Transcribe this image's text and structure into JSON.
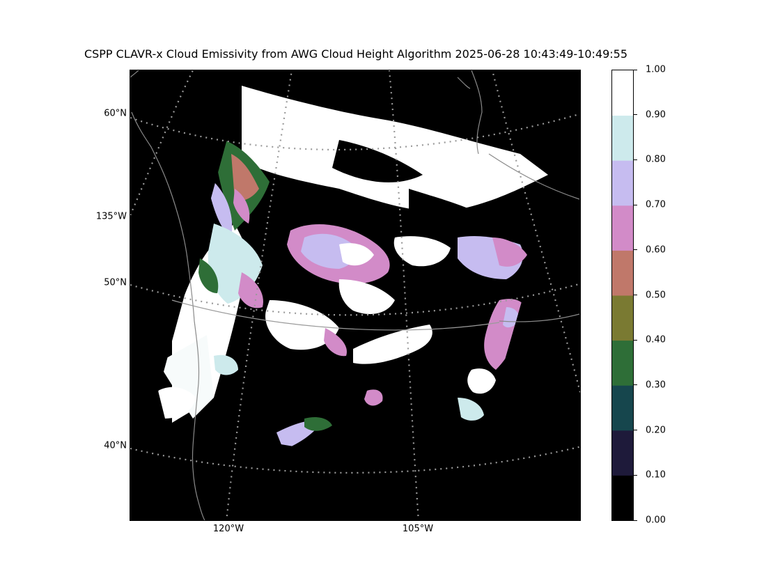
{
  "title": "CSPP CLAVR-x Cloud Emissivity from AWG Cloud Height Algorithm 2025-06-28 10:43:49-10:49:55",
  "map": {
    "lat_labels": [
      "60°N",
      "135°W",
      "50°N",
      "40°N"
    ],
    "lon_labels": [
      "120°W",
      "105°W"
    ],
    "background_color": "#000000",
    "graticule_color": "#9a9a9a",
    "coastline_color": "#8a8a8a"
  },
  "colorbar": {
    "ticks": [
      "0.00",
      "0.10",
      "0.20",
      "0.30",
      "0.40",
      "0.50",
      "0.60",
      "0.70",
      "0.80",
      "0.90",
      "1.00"
    ],
    "colors": [
      "#000000",
      "#1e1a3a",
      "#16464d",
      "#2e6e37",
      "#7a7a32",
      "#c0786a",
      "#d28bc8",
      "#c6bcf0",
      "#cdeaec",
      "#ffffff"
    ]
  }
}
